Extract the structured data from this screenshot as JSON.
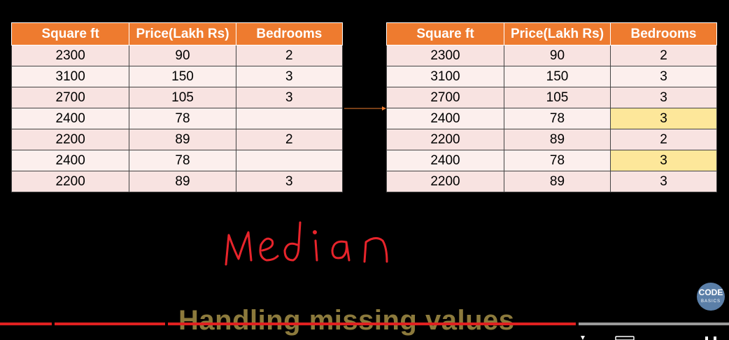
{
  "tables": {
    "left": {
      "headers": [
        "Square ft",
        "Price(Lakh Rs)",
        "Bedrooms"
      ],
      "rows": [
        [
          "2300",
          "90",
          "2"
        ],
        [
          "3100",
          "150",
          "3"
        ],
        [
          "2700",
          "105",
          "3"
        ],
        [
          "2400",
          "78",
          ""
        ],
        [
          "2200",
          "89",
          "2"
        ],
        [
          "2400",
          "78",
          ""
        ],
        [
          "2200",
          "89",
          "3"
        ]
      ]
    },
    "right": {
      "headers": [
        "Square ft",
        "Price(Lakh Rs)",
        "Bedrooms"
      ],
      "rows": [
        [
          "2300",
          "90",
          "2"
        ],
        [
          "3100",
          "150",
          "3"
        ],
        [
          "2700",
          "105",
          "3"
        ],
        [
          "2400",
          "78",
          "3"
        ],
        [
          "2200",
          "89",
          "2"
        ],
        [
          "2400",
          "78",
          "3"
        ],
        [
          "2200",
          "89",
          "3"
        ]
      ],
      "filled_rows": [
        3,
        5
      ]
    }
  },
  "annotation": {
    "handwritten_text": "Median",
    "color": "#e8242b"
  },
  "footer": {
    "title": "Handling missing values"
  },
  "logo": {
    "line1": "CODE",
    "line2": "BASICS"
  },
  "colors": {
    "header": "#ee7b2f",
    "filled_cell": "#fde79a",
    "progress": "#e02020"
  },
  "video": {
    "progress_fraction": 0.79
  }
}
